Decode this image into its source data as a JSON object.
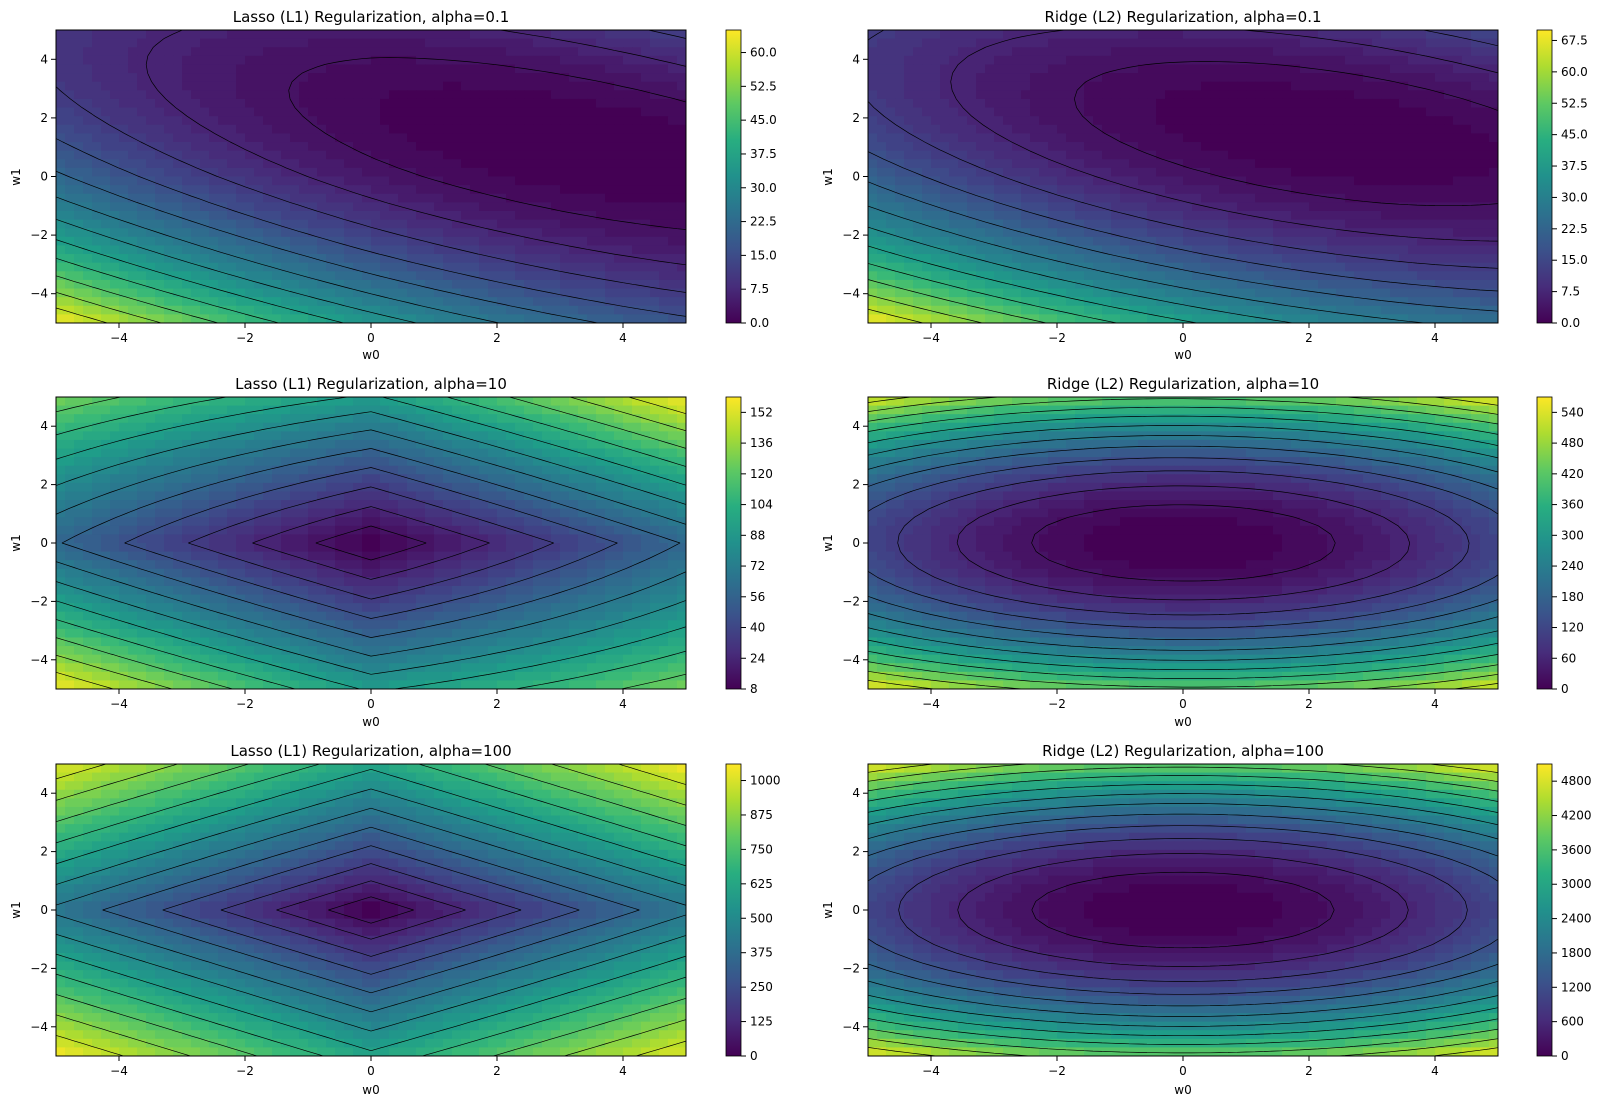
{
  "figure": {
    "colormap": "viridis",
    "contour_line_color": "#000000"
  },
  "chart_data": [
    {
      "type": "heatmap",
      "title": "Lasso (L1) Regularization, alpha=0.1",
      "xlabel": "w0",
      "ylabel": "w1",
      "xlim": [
        -5,
        5
      ],
      "ylim": [
        -5,
        5
      ],
      "xticks": [
        "−4",
        "−2",
        "0",
        "2",
        "4"
      ],
      "yticks": [
        "4",
        "2",
        "0",
        "−2",
        "−4"
      ],
      "penalty": "L1",
      "alpha": 0.1,
      "loss_minimum": [
        3.5,
        1.0
      ],
      "colorbar": {
        "ticks": [
          "0.0",
          "7.5",
          "15.0",
          "22.5",
          "30.0",
          "37.5",
          "45.0",
          "52.5",
          "60.0"
        ],
        "values": [
          0,
          7.5,
          15,
          22.5,
          30,
          37.5,
          45,
          52.5,
          60
        ],
        "range": [
          0,
          65
        ]
      }
    },
    {
      "type": "heatmap",
      "title": "Ridge (L2) Regularization, alpha=0.1",
      "xlabel": "w0",
      "ylabel": "w1",
      "xlim": [
        -5,
        5
      ],
      "ylim": [
        -5,
        5
      ],
      "xticks": [
        "−4",
        "−2",
        "0",
        "2",
        "4"
      ],
      "yticks": [
        "4",
        "2",
        "0",
        "−2",
        "−4"
      ],
      "penalty": "L2",
      "alpha": 0.1,
      "loss_minimum": [
        2.4,
        2.0
      ],
      "colorbar": {
        "ticks": [
          "0.0",
          "7.5",
          "15.0",
          "22.5",
          "30.0",
          "37.5",
          "45.0",
          "52.5",
          "60.0",
          "67.5"
        ],
        "values": [
          0,
          7.5,
          15,
          22.5,
          30,
          37.5,
          45,
          52.5,
          60,
          67.5
        ],
        "range": [
          0,
          70
        ]
      }
    },
    {
      "type": "heatmap",
      "title": "Lasso (L1) Regularization, alpha=10",
      "xlabel": "w0",
      "ylabel": "w1",
      "xlim": [
        -5,
        5
      ],
      "ylim": [
        -5,
        5
      ],
      "xticks": [
        "−4",
        "−2",
        "0",
        "2",
        "4"
      ],
      "yticks": [
        "4",
        "2",
        "0",
        "−2",
        "−4"
      ],
      "penalty": "L1",
      "alpha": 10,
      "loss_minimum": [
        0,
        0
      ],
      "colorbar": {
        "ticks": [
          "8",
          "24",
          "40",
          "56",
          "72",
          "88",
          "104",
          "120",
          "136",
          "152"
        ],
        "values": [
          8,
          24,
          40,
          56,
          72,
          88,
          104,
          120,
          136,
          152
        ],
        "range": [
          8,
          160
        ]
      }
    },
    {
      "type": "heatmap",
      "title": "Ridge (L2) Regularization, alpha=10",
      "xlabel": "w0",
      "ylabel": "w1",
      "xlim": [
        -5,
        5
      ],
      "ylim": [
        -5,
        5
      ],
      "xticks": [
        "−4",
        "−2",
        "0",
        "2",
        "4"
      ],
      "yticks": [
        "4",
        "2",
        "0",
        "−2",
        "−4"
      ],
      "penalty": "L2",
      "alpha": 10,
      "loss_minimum": [
        0.1,
        0.1
      ],
      "colorbar": {
        "ticks": [
          "0",
          "60",
          "120",
          "180",
          "240",
          "300",
          "360",
          "420",
          "480",
          "540"
        ],
        "values": [
          0,
          60,
          120,
          180,
          240,
          300,
          360,
          420,
          480,
          540
        ],
        "range": [
          0,
          570
        ]
      }
    },
    {
      "type": "heatmap",
      "title": "Lasso (L1) Regularization, alpha=100",
      "xlabel": "w0",
      "ylabel": "w1",
      "xlim": [
        -5,
        5
      ],
      "ylim": [
        -5,
        5
      ],
      "xticks": [
        "−4",
        "−2",
        "0",
        "2",
        "4"
      ],
      "yticks": [
        "4",
        "2",
        "0",
        "−2",
        "−4"
      ],
      "penalty": "L1",
      "alpha": 100,
      "loss_minimum": [
        0,
        0
      ],
      "colorbar": {
        "ticks": [
          "0",
          "125",
          "250",
          "375",
          "500",
          "625",
          "750",
          "875",
          "1000"
        ],
        "values": [
          0,
          125,
          250,
          375,
          500,
          625,
          750,
          875,
          1000
        ],
        "range": [
          0,
          1060
        ]
      }
    },
    {
      "type": "heatmap",
      "title": "Ridge (L2) Regularization, alpha=100",
      "xlabel": "w0",
      "ylabel": "w1",
      "xlim": [
        -5,
        5
      ],
      "ylim": [
        -5,
        5
      ],
      "xticks": [
        "−4",
        "−2",
        "0",
        "2",
        "4"
      ],
      "yticks": [
        "4",
        "2",
        "0",
        "−2",
        "−4"
      ],
      "penalty": "L2",
      "alpha": 100,
      "loss_minimum": [
        0,
        0
      ],
      "colorbar": {
        "ticks": [
          "0",
          "600",
          "1200",
          "1800",
          "2400",
          "3000",
          "3600",
          "4200",
          "4800"
        ],
        "values": [
          0,
          600,
          1200,
          1800,
          2400,
          3000,
          3600,
          4200,
          4800
        ],
        "range": [
          0,
          5100
        ]
      }
    }
  ]
}
